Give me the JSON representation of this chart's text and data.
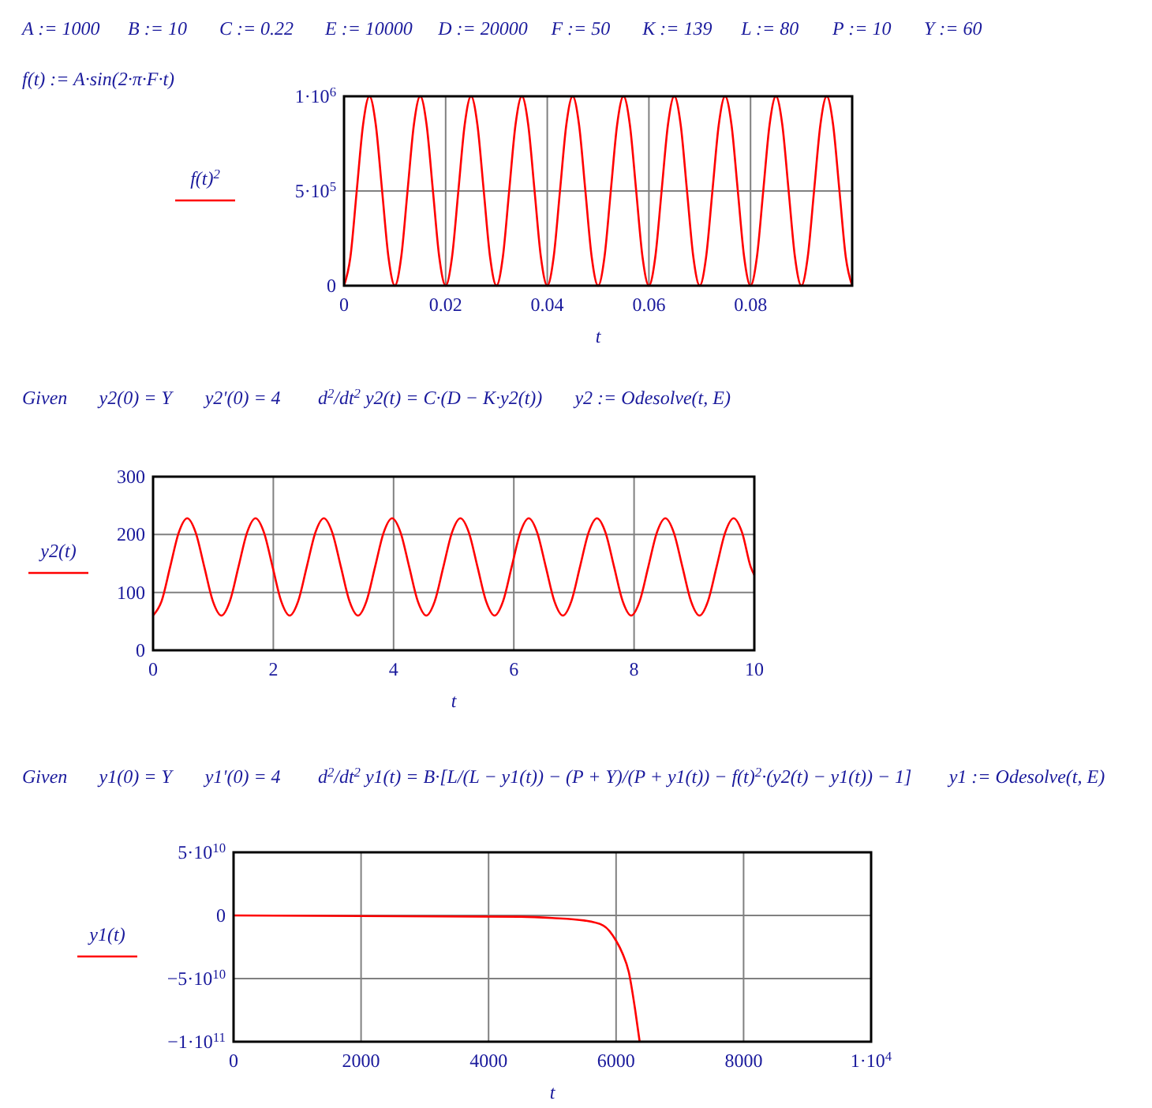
{
  "chart_data": [
    {
      "type": "line",
      "annotations": [
        "A := 1000",
        "B := 10",
        "C := 0.22",
        "E := 10000",
        "D := 20000",
        "F := 50",
        "K := 139",
        "L := 80",
        "P := 10",
        "Y := 60",
        "f(t) := A·sin(2·π·F·t)"
      ],
      "xlabel": "t",
      "ylabel": "f(t)$^{2}$",
      "xlim": [
        0,
        0.1
      ],
      "xticks": [
        0,
        0.02,
        0.04,
        0.06,
        0.08
      ],
      "ylim": [
        0,
        1000000
      ],
      "yticks": [
        {
          "value": 0,
          "label": "0"
        },
        {
          "value": 500000,
          "label": "5·10$^{5}$"
        },
        {
          "value": 1000000,
          "label": "1·10$^{6}$"
        }
      ],
      "grid": true,
      "series": [
        {
          "color": "#ff0000",
          "x": [
            0,
            0.00125,
            0.0025,
            0.00375,
            0.005,
            0.00625,
            0.0075,
            0.00875,
            0.01,
            0.01125,
            0.0125,
            0.01375,
            0.015,
            0.01625,
            0.0175,
            0.01875,
            0.02,
            0.02125,
            0.0225,
            0.02375,
            0.025,
            0.02625,
            0.0275,
            0.02875,
            0.03,
            0.03125,
            0.0325,
            0.03375,
            0.035,
            0.03625,
            0.0375,
            0.03875,
            0.04,
            0.04125,
            0.0425,
            0.04375,
            0.045,
            0.04625,
            0.0475,
            0.04875,
            0.05,
            0.05125,
            0.0525,
            0.05375,
            0.055,
            0.05625,
            0.0575,
            0.05875,
            0.06,
            0.06125,
            0.0625,
            0.06375,
            0.065,
            0.06625,
            0.0675,
            0.06875,
            0.07,
            0.07125,
            0.0725,
            0.07375,
            0.075,
            0.07625,
            0.0775,
            0.07875,
            0.08,
            0.08125,
            0.0825,
            0.08375,
            0.085,
            0.08625,
            0.0875,
            0.08875,
            0.09,
            0.09125,
            0.0925,
            0.09375,
            0.095,
            0.09625,
            0.0975,
            0.09875,
            0.1
          ],
          "values": [
            0,
            150000,
            500000,
            850000,
            1000000,
            850000,
            500000,
            150000,
            0,
            150000,
            500000,
            850000,
            1000000,
            850000,
            500000,
            150000,
            0,
            150000,
            500000,
            850000,
            1000000,
            850000,
            500000,
            150000,
            0,
            150000,
            500000,
            850000,
            1000000,
            850000,
            500000,
            150000,
            0,
            150000,
            500000,
            850000,
            1000000,
            850000,
            500000,
            150000,
            0,
            150000,
            500000,
            850000,
            1000000,
            850000,
            500000,
            150000,
            0,
            150000,
            500000,
            850000,
            1000000,
            850000,
            500000,
            150000,
            0,
            150000,
            500000,
            850000,
            1000000,
            850000,
            500000,
            150000,
            0,
            150000,
            500000,
            850000,
            1000000,
            850000,
            500000,
            150000,
            0,
            150000,
            500000,
            850000,
            1000000,
            850000,
            500000,
            150000,
            0
          ]
        }
      ]
    },
    {
      "type": "line",
      "annotations": [
        "Given",
        "y2(0) = Y",
        "y2'(0) = 4",
        "d$^{2}$/dt$^{2}$ y2(t) = C·(D − K·y2(t))",
        "y2 := Odesolve(t, E)"
      ],
      "xlabel": "t",
      "ylabel": "y2(t)",
      "xlim": [
        0,
        10
      ],
      "xticks": [
        0,
        2,
        4,
        6,
        8,
        10
      ],
      "ylim": [
        0,
        300
      ],
      "yticks": [
        0,
        100,
        200,
        300
      ],
      "grid": true,
      "series": [
        {
          "color": "#ff0000",
          "x": [
            0,
            0.142,
            0.284,
            0.426,
            0.568,
            0.71,
            0.852,
            0.994,
            1.136,
            1.278,
            1.42,
            1.562,
            1.704,
            1.846,
            1.988,
            2.13,
            2.272,
            2.414,
            2.556,
            2.698,
            2.84,
            2.982,
            3.124,
            3.266,
            3.408,
            3.55,
            3.692,
            3.834,
            3.976,
            4.118,
            4.26,
            4.402,
            4.544,
            4.686,
            4.828,
            4.97,
            5.112,
            5.254,
            5.396,
            5.538,
            5.68,
            5.822,
            5.964,
            6.106,
            6.248,
            6.39,
            6.532,
            6.674,
            6.816,
            6.958,
            7.1,
            7.242,
            7.384,
            7.526,
            7.668,
            7.81,
            7.952,
            8.094,
            8.236,
            8.378,
            8.52,
            8.662,
            8.804,
            8.946,
            9.088,
            9.23,
            9.372,
            9.514,
            9.656,
            9.798,
            9.94,
            10
          ],
          "values": [
            60,
            85,
            144,
            203,
            228,
            203,
            144,
            85,
            60,
            85,
            144,
            203,
            228,
            203,
            144,
            85,
            60,
            85,
            144,
            203,
            228,
            203,
            144,
            85,
            60,
            85,
            144,
            203,
            228,
            203,
            144,
            85,
            60,
            85,
            144,
            203,
            228,
            203,
            144,
            85,
            60,
            85,
            144,
            203,
            228,
            203,
            144,
            85,
            60,
            85,
            144,
            203,
            228,
            203,
            144,
            85,
            60,
            85,
            144,
            203,
            228,
            203,
            144,
            85,
            60,
            85,
            144,
            203,
            228,
            203,
            144,
            130
          ]
        }
      ]
    },
    {
      "type": "line",
      "annotations": [
        "Given",
        "y1(0) = Y",
        "y1'(0) = 4",
        "d$^{2}$/dt$^{2}$ y1(t) = B·[L/(L − y1(t)) − (P + Y)/(P + y1(t)) − f(t)$^{2}$·(y2(t) − y1(t)) − 1]",
        "y1 := Odesolve(t, E)"
      ],
      "xlabel": "t",
      "ylabel": "y1(t)",
      "xlim": [
        0,
        10000
      ],
      "xticks": [
        0,
        2000,
        4000,
        6000,
        8000,
        {
          "value": 10000,
          "label": "1·10$^{4}$"
        }
      ],
      "ylim": [
        -100000000000,
        50000000000
      ],
      "yticks": [
        {
          "value": -100000000000,
          "label": "−1·10$^{11}$"
        },
        {
          "value": -50000000000,
          "label": "−5·10$^{10}$"
        },
        {
          "value": 0,
          "label": "0"
        },
        {
          "value": 50000000000,
          "label": "5·10$^{10}$"
        }
      ],
      "grid": true,
      "series": [
        {
          "color": "#ff0000",
          "x": [
            0,
            4500,
            5000,
            5500,
            5800,
            6000,
            6100,
            6200,
            6300,
            6370
          ],
          "values": [
            0,
            -1000000000,
            -2000000000,
            -4000000000,
            -8000000000,
            -20000000000,
            -30000000000,
            -45000000000,
            -75000000000,
            -100000000000
          ]
        }
      ]
    }
  ]
}
